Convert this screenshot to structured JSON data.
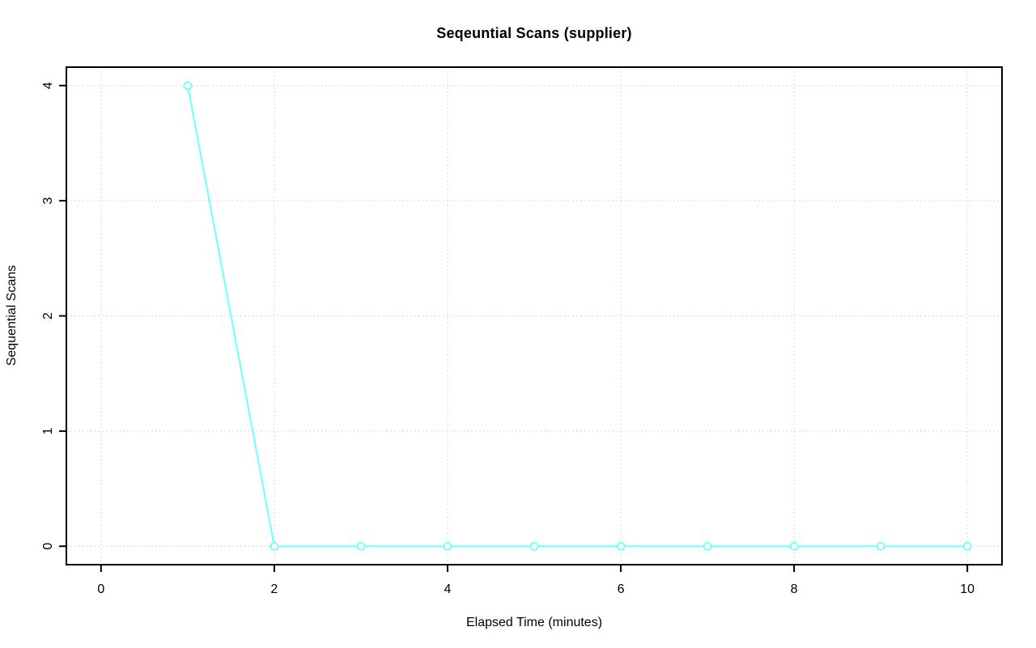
{
  "chart_data": {
    "type": "line",
    "title": "Seqeuntial Scans (supplier)",
    "xlabel": "Elapsed Time (minutes)",
    "ylabel": "Sequential Scans",
    "x": [
      1,
      2,
      3,
      4,
      5,
      6,
      7,
      8,
      9,
      10
    ],
    "values": [
      4,
      0,
      0,
      0,
      0,
      0,
      0,
      0,
      0,
      0
    ],
    "series_name": "supplier",
    "xticks": [
      0,
      2,
      4,
      6,
      8,
      10
    ],
    "yticks": [
      0,
      1,
      2,
      3,
      4
    ],
    "xlim": [
      -0.4,
      10.4
    ],
    "ylim": [
      -0.16,
      4.16
    ],
    "grid": "dotted",
    "legend": "none",
    "marker": "open-circle",
    "colors": {
      "series": "#6fffff",
      "grid": "#d3d3d3",
      "axis": "#000000",
      "background": "#ffffff"
    }
  }
}
